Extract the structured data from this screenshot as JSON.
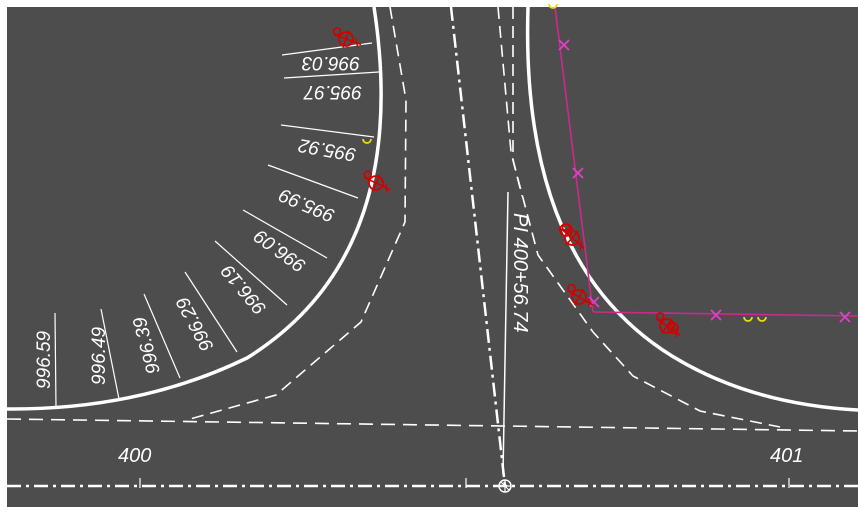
{
  "drawing": {
    "background_color": "#4d4d4d",
    "frame_color": "#ffffff",
    "linework_color": "#ffffff",
    "symbol_color": "#d40000",
    "fence_color": "#cc2a8a",
    "fence_marker_color": "#e040c8",
    "utility_color": "#e8e000"
  },
  "stations": {
    "left": "400",
    "right": "401"
  },
  "pi_label": "PI 400+56.74",
  "curb_elevations": [
    "996.03",
    "995.97",
    "995.92",
    "995.99",
    "996.09",
    "996.19",
    "996.29",
    "996.39",
    "996.49",
    "996.59"
  ],
  "icons": {
    "hydrant": "fire-hydrant-icon",
    "fence_mark": "fence-x-marker-icon",
    "pi_point": "pi-point-icon",
    "utility": "utility-marker-icon"
  }
}
